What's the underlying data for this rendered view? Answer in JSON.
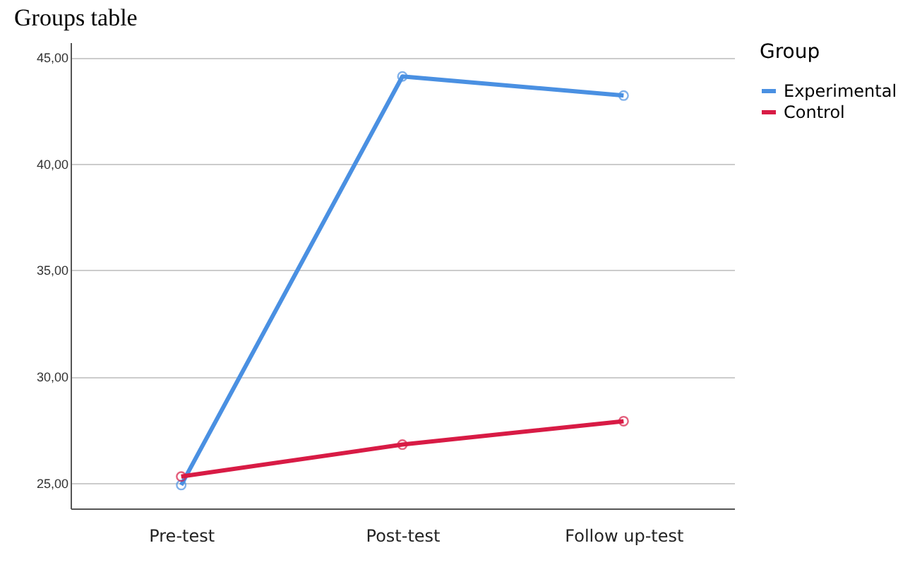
{
  "chart_data": {
    "type": "line",
    "title": "Groups table",
    "categories": [
      "Pre-test",
      "Post-test",
      "Follow up-test"
    ],
    "series": [
      {
        "name": "Experimental",
        "color": "#4a90e2",
        "values": [
          24.9,
          44.1,
          43.2
        ]
      },
      {
        "name": "Control",
        "color": "#d81b45",
        "values": [
          25.3,
          26.8,
          27.9
        ]
      }
    ],
    "legend_title": "Group",
    "legend": "top right",
    "ylim": [
      23.8,
      45.7
    ],
    "yticks": [
      {
        "value": 25,
        "label": "25,00"
      },
      {
        "value": 30,
        "label": "30,00"
      },
      {
        "value": 35,
        "label": "35,00"
      },
      {
        "value": 40,
        "label": "40,00"
      },
      {
        "value": 45,
        "label": "45,00"
      }
    ],
    "grid": "y",
    "marker": "circle",
    "line_style": "solid"
  }
}
